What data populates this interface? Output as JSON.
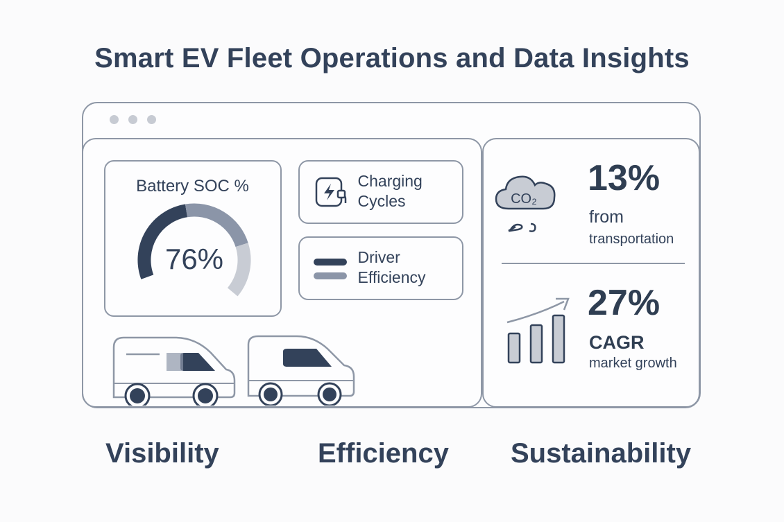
{
  "title": "Smart EV Fleet Operations and Data Insights",
  "colors": {
    "dark": "#33425a",
    "mid": "#8b95a8",
    "light": "#c8ccd4",
    "border": "#8e97a6"
  },
  "soc": {
    "label": "Battery SOC %",
    "value_text": "76%",
    "value": 76
  },
  "cards": {
    "charging": {
      "label": "Charging\nCycles",
      "icon": "lightning-plug-icon"
    },
    "driver": {
      "label": "Driver\nEfficiency",
      "icon": "bars-icon"
    }
  },
  "stats": {
    "co2": {
      "icon_text": "CO₂",
      "big": "13%",
      "line1": "from",
      "line2": "transportation"
    },
    "growth": {
      "big": "27%",
      "line1": "CAGR",
      "line2": "market growth"
    }
  },
  "pillars": [
    "Visibility",
    "Efficiency",
    "Sustainability"
  ]
}
